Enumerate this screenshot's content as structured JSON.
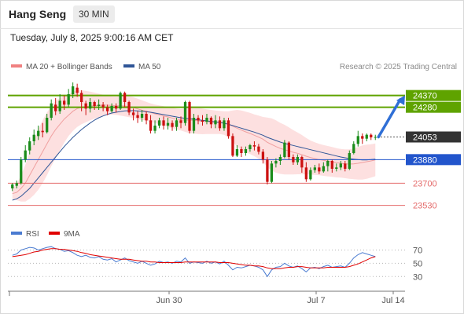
{
  "header": {
    "title": "Hang Seng",
    "timeframe": "30 MIN"
  },
  "date_line": "Tuesday, July 8, 2025 9:00:16 AM CET",
  "legend_main": [
    {
      "label": "MA 20 + Bollinger Bands",
      "color": "#f08080"
    },
    {
      "label": "MA 50",
      "color": "#2f5597"
    }
  ],
  "credit": "Research © 2025 Trading Central",
  "legend_rsi": [
    {
      "label": "RSI",
      "color": "#4a7bd1"
    },
    {
      "label": "9MA",
      "color": "#e00000"
    }
  ],
  "colors": {
    "up": "#1a8c1a",
    "down": "#cc1111",
    "resistance": "#5fa300",
    "pivot": "#2255cc",
    "support": "#e46a6a",
    "last": "#333333",
    "bb_fill": "#fde0e0",
    "ma20": "#f0a0a0",
    "ma50": "#2f5597"
  },
  "chart_data": [
    {
      "type": "candlestick",
      "price_scale": [
        23480,
        24500
      ],
      "x_ticks": [
        "Jun 30",
        "Jul 7",
        "Jul 14"
      ],
      "levels": [
        {
          "label": "24370",
          "value": 24370,
          "kind": "resistance"
        },
        {
          "label": "24280",
          "value": 24280,
          "kind": "resistance"
        },
        {
          "label": "24053",
          "value": 24053,
          "kind": "last"
        },
        {
          "label": "23880",
          "value": 23880,
          "kind": "pivot"
        },
        {
          "label": "23700",
          "value": 23700,
          "kind": "support"
        },
        {
          "label": "23530",
          "value": 23530,
          "kind": "support"
        }
      ],
      "arrow": {
        "direction": "up",
        "from": 24053,
        "to": 24370
      },
      "candles": [
        [
          23660,
          23690,
          23640,
          23700
        ],
        [
          23680,
          23700,
          23660,
          23720
        ],
        [
          23700,
          23880,
          23690,
          23900
        ],
        [
          23880,
          23950,
          23860,
          23990
        ],
        [
          23950,
          24020,
          23920,
          24050
        ],
        [
          24020,
          24070,
          23990,
          24110
        ],
        [
          24060,
          24100,
          24030,
          24140
        ],
        [
          24100,
          24090,
          24050,
          24160
        ],
        [
          24090,
          24200,
          24080,
          24230
        ],
        [
          24200,
          24310,
          24180,
          24340
        ],
        [
          24300,
          24250,
          24220,
          24350
        ],
        [
          24250,
          24330,
          24230,
          24380
        ],
        [
          24330,
          24300,
          24260,
          24370
        ],
        [
          24300,
          24380,
          24280,
          24420
        ],
        [
          24380,
          24440,
          24350,
          24470
        ],
        [
          24430,
          24390,
          24360,
          24460
        ],
        [
          24390,
          24320,
          24250,
          24410
        ],
        [
          24310,
          24270,
          24220,
          24330
        ],
        [
          24270,
          24320,
          24240,
          24350
        ],
        [
          24320,
          24290,
          24260,
          24330
        ],
        [
          24290,
          24300,
          24260,
          24340
        ],
        [
          24300,
          24280,
          24250,
          24320
        ],
        [
          24280,
          24250,
          24220,
          24300
        ],
        [
          24250,
          24290,
          24240,
          24310
        ],
        [
          24290,
          24270,
          24240,
          24310
        ],
        [
          24270,
          24390,
          24260,
          24400
        ],
        [
          24390,
          24320,
          24280,
          24400
        ],
        [
          24320,
          24240,
          24220,
          24330
        ],
        [
          24240,
          24220,
          24180,
          24270
        ],
        [
          24220,
          24200,
          24160,
          24250
        ],
        [
          24200,
          24230,
          24170,
          24260
        ],
        [
          24230,
          24180,
          24150,
          24250
        ],
        [
          24180,
          24100,
          24080,
          24220
        ],
        [
          24100,
          24140,
          24080,
          24180
        ],
        [
          24140,
          24180,
          24120,
          24200
        ],
        [
          24180,
          24140,
          24110,
          24210
        ],
        [
          24140,
          24160,
          24110,
          24200
        ],
        [
          24160,
          24130,
          24100,
          24180
        ],
        [
          24130,
          24180,
          24100,
          24200
        ],
        [
          24180,
          24160,
          24120,
          24210
        ],
        [
          24160,
          24320,
          24140,
          24330
        ],
        [
          24320,
          24100,
          24080,
          24330
        ],
        [
          24100,
          24200,
          24080,
          24230
        ],
        [
          24200,
          24180,
          24150,
          24220
        ],
        [
          24180,
          24170,
          24140,
          24220
        ],
        [
          24170,
          24200,
          24150,
          24230
        ],
        [
          24200,
          24150,
          24120,
          24210
        ],
        [
          24150,
          24180,
          24120,
          24220
        ],
        [
          24180,
          24120,
          24100,
          24210
        ],
        [
          24120,
          24180,
          24100,
          24200
        ],
        [
          24180,
          24060,
          24040,
          24200
        ],
        [
          24060,
          23910,
          23900,
          24080
        ],
        [
          23910,
          23960,
          23900,
          23990
        ],
        [
          23960,
          23930,
          23900,
          23980
        ],
        [
          23930,
          23960,
          23910,
          23980
        ],
        [
          23960,
          23990,
          23940,
          24000
        ],
        [
          23990,
          23980,
          23950,
          24020
        ],
        [
          23980,
          23940,
          23920,
          24000
        ],
        [
          23940,
          23880,
          23850,
          23960
        ],
        [
          23880,
          23710,
          23690,
          23900
        ],
        [
          23710,
          23850,
          23700,
          23870
        ],
        [
          23850,
          23870,
          23820,
          23890
        ],
        [
          23870,
          23900,
          23840,
          23920
        ],
        [
          23900,
          24010,
          23890,
          24030
        ],
        [
          24010,
          23900,
          23880,
          24020
        ],
        [
          23900,
          23860,
          23840,
          23920
        ],
        [
          23860,
          23900,
          23840,
          23920
        ],
        [
          23900,
          23820,
          23780,
          23910
        ],
        [
          23820,
          23730,
          23710,
          23860
        ],
        [
          23730,
          23800,
          23720,
          23820
        ],
        [
          23800,
          23820,
          23780,
          23840
        ],
        [
          23820,
          23790,
          23770,
          23850
        ],
        [
          23790,
          23830,
          23780,
          23860
        ],
        [
          23830,
          23870,
          23790,
          23880
        ],
        [
          23870,
          23810,
          23780,
          23880
        ],
        [
          23810,
          23820,
          23790,
          23850
        ],
        [
          23820,
          23850,
          23800,
          23870
        ],
        [
          23850,
          23810,
          23790,
          23870
        ],
        [
          23810,
          23930,
          23800,
          23950
        ],
        [
          23930,
          24000,
          23920,
          24020
        ],
        [
          24000,
          24060,
          23980,
          24100
        ],
        [
          24060,
          24040,
          24000,
          24080
        ],
        [
          24040,
          24070,
          24020,
          24080
        ],
        [
          24070,
          24050,
          24030,
          24080
        ],
        [
          24050,
          24053,
          24030,
          24070
        ]
      ],
      "ma20": [
        23620,
        23630,
        23660,
        23700,
        23760,
        23820,
        23880,
        23940,
        24000,
        24060,
        24110,
        24150,
        24190,
        24220,
        24250,
        24270,
        24280,
        24285,
        24290,
        24292,
        24294,
        24296,
        24296,
        24294,
        24292,
        24292,
        24290,
        24285,
        24278,
        24268,
        24258,
        24250,
        24240,
        24230,
        24222,
        24214,
        24206,
        24198,
        24190,
        24184,
        24182,
        24182,
        24180,
        24176,
        24172,
        24170,
        24168,
        24166,
        24164,
        24160,
        24150,
        24136,
        24120,
        24106,
        24092,
        24080,
        24066,
        24052,
        24036,
        24012,
        23996,
        23980,
        23966,
        23956,
        23946,
        23936,
        23928,
        23918,
        23906,
        23896,
        23888,
        23880,
        23874,
        23868,
        23862,
        23856,
        23852,
        23848,
        23846,
        23848,
        23852,
        23858,
        23864,
        23870,
        23878
      ],
      "ma50": [
        23570,
        23580,
        23600,
        23630,
        23660,
        23700,
        23740,
        23780,
        23820,
        23860,
        23900,
        23940,
        23980,
        24015,
        24050,
        24080,
        24110,
        24135,
        24160,
        24182,
        24200,
        24214,
        24226,
        24236,
        24242,
        24248,
        24252,
        24254,
        24254,
        24252,
        24250,
        24246,
        24242,
        24236,
        24230,
        24224,
        24218,
        24212,
        24206,
        24200,
        24196,
        24192,
        24188,
        24184,
        24180,
        24176,
        24172,
        24168,
        24164,
        24158,
        24150,
        24140,
        24130,
        24120,
        24110,
        24100,
        24090,
        24078,
        24066,
        24050,
        24038,
        24026,
        24014,
        24004,
        23996,
        23988,
        23980,
        23972,
        23964,
        23956,
        23948,
        23940,
        23932,
        23924,
        23916,
        23908,
        23900,
        23894,
        23888,
        23884,
        23880,
        23878,
        23878,
        23880,
        23884
      ],
      "bb_width": [
        40,
        60,
        100,
        140,
        180,
        210,
        230,
        240,
        240,
        230,
        220,
        200,
        180,
        160,
        150,
        140,
        130,
        120,
        110,
        100,
        90,
        80,
        75,
        70,
        70,
        75,
        80,
        80,
        80,
        78,
        75,
        72,
        70,
        70,
        72,
        74,
        76,
        78,
        80,
        82,
        90,
        100,
        100,
        100,
        98,
        95,
        92,
        90,
        88,
        90,
        100,
        120,
        140,
        150,
        155,
        158,
        160,
        165,
        170,
        190,
        200,
        200,
        195,
        190,
        180,
        170,
        160,
        150,
        140,
        130,
        125,
        120,
        118,
        116,
        114,
        112,
        110,
        110,
        112,
        118,
        125,
        130,
        130,
        128,
        125
      ]
    },
    {
      "type": "line",
      "name": "RSI",
      "y_ticks": [
        70,
        50,
        30
      ],
      "ylim": [
        15,
        80
      ],
      "series": [
        {
          "name": "RSI",
          "values": [
            62,
            64,
            70,
            72,
            74,
            73,
            70,
            72,
            74,
            75,
            72,
            71,
            68,
            69,
            66,
            62,
            60,
            62,
            59,
            58,
            60,
            56,
            55,
            57,
            52,
            55,
            58,
            54,
            52,
            50,
            53,
            50,
            47,
            49,
            53,
            51,
            52,
            50,
            53,
            52,
            58,
            50,
            52,
            51,
            50,
            53,
            50,
            52,
            49,
            53,
            47,
            40,
            44,
            43,
            45,
            47,
            46,
            44,
            40,
            30,
            40,
            44,
            45,
            50,
            46,
            44,
            46,
            42,
            37,
            43,
            44,
            42,
            45,
            47,
            44,
            45,
            46,
            44,
            50,
            58,
            63,
            66,
            64,
            62,
            60
          ]
        },
        {
          "name": "9MA",
          "values": [
            60,
            61,
            62,
            63,
            65,
            67,
            68,
            70,
            71,
            72,
            72,
            71,
            71,
            70,
            69,
            68,
            66,
            65,
            63,
            62,
            61,
            60,
            59,
            58,
            57,
            56,
            56,
            56,
            55,
            54,
            53,
            53,
            52,
            52,
            51,
            51,
            51,
            51,
            51,
            51,
            52,
            52,
            52,
            52,
            52,
            52,
            52,
            52,
            51,
            51,
            51,
            50,
            49,
            48,
            47,
            47,
            46,
            46,
            45,
            43,
            42,
            42,
            42,
            43,
            44,
            44,
            45,
            45,
            44,
            43,
            43,
            43,
            43,
            44,
            44,
            44,
            44,
            44,
            45,
            47,
            49,
            52,
            55,
            58,
            60
          ]
        }
      ]
    }
  ]
}
